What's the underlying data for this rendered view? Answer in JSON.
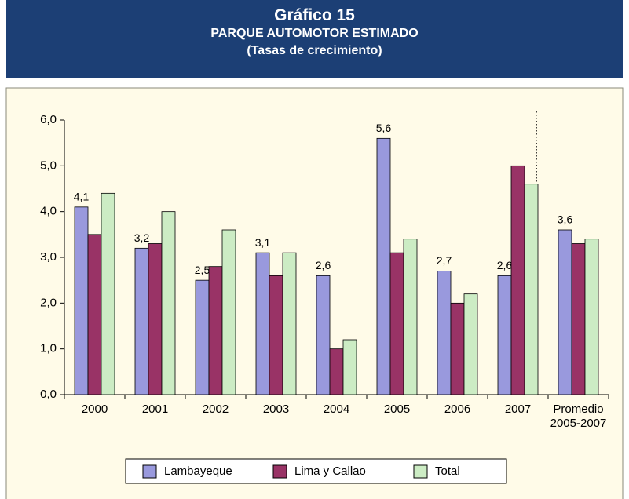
{
  "chart_data": {
    "type": "bar",
    "title": "Gráfico 15",
    "subtitle": "PARQUE AUTOMOTOR ESTIMADO",
    "subtitle2": "(Tasas de crecimiento)",
    "categories": [
      "2000",
      "2001",
      "2002",
      "2003",
      "2004",
      "2005",
      "2006",
      "2007",
      "Promedio 2005-2007"
    ],
    "series": [
      {
        "name": "Lambayeque",
        "color": "#9999dd",
        "values": [
          4.1,
          3.2,
          2.5,
          3.1,
          2.6,
          5.6,
          2.7,
          2.6,
          3.6
        ],
        "value_labels": [
          "4,1",
          "3,2",
          "2,5",
          "3,1",
          "2,6",
          "5,6",
          "2,7",
          "2,6",
          "3,6"
        ]
      },
      {
        "name": "Lima y Callao",
        "color": "#993366",
        "values": [
          3.5,
          3.3,
          2.8,
          2.6,
          1.0,
          3.1,
          2.0,
          5.0,
          3.3
        ]
      },
      {
        "name": "Total",
        "color": "#ccecc4",
        "values": [
          4.4,
          4.0,
          3.6,
          3.1,
          1.2,
          3.4,
          2.2,
          4.6,
          3.4
        ]
      }
    ],
    "ylim": [
      0,
      6
    ],
    "yticks": [
      {
        "value": 0,
        "label": "0,0"
      },
      {
        "value": 1,
        "label": "1,0"
      },
      {
        "value": 2,
        "label": "2,0"
      },
      {
        "value": 3,
        "label": "3,0"
      },
      {
        "value": 4,
        "label": "4,0"
      },
      {
        "value": 5,
        "label": "5,0"
      },
      {
        "value": 6,
        "label": "6,0"
      }
    ],
    "grid": false,
    "legend": "bottom"
  }
}
